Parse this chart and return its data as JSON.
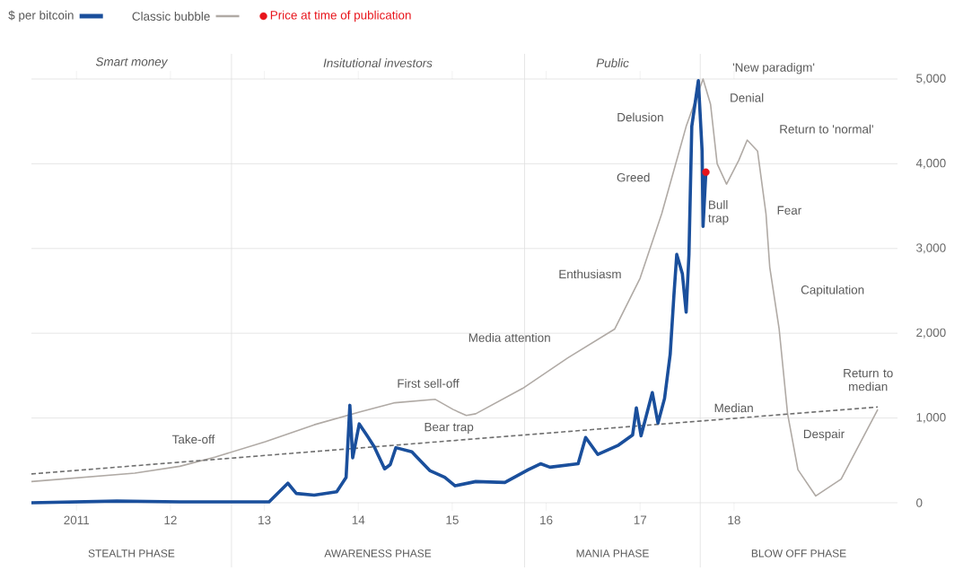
{
  "chart_data": {
    "type": "line",
    "xlim": [
      2010.52,
      2019.74
    ],
    "ylim": [
      0,
      5000
    ],
    "grid": "y",
    "legend": "top left",
    "xticks": [
      {
        "value": 2011,
        "label": "2011"
      },
      {
        "value": 2012,
        "label": "12"
      },
      {
        "value": 2013,
        "label": "13"
      },
      {
        "value": 2014,
        "label": "14"
      },
      {
        "value": 2015,
        "label": "15"
      },
      {
        "value": 2016,
        "label": "16"
      },
      {
        "value": 2017,
        "label": "17"
      },
      {
        "value": 2018,
        "label": "18"
      }
    ],
    "yticks": [
      0,
      {
        "value": 1000,
        "label": "1,000"
      },
      {
        "value": 2000,
        "label": "2,000"
      },
      {
        "value": 3000,
        "label": "3,000"
      },
      {
        "value": 4000,
        "label": "4,000"
      },
      {
        "value": 5000,
        "label": "5,000"
      }
    ],
    "ref_lines": [
      {
        "axis": "x",
        "value": 2012.65,
        "label": null
      },
      {
        "axis": "x",
        "value": 2015.77,
        "label": null
      },
      {
        "axis": "x",
        "value": 2017.64,
        "label": null
      }
    ],
    "annotations": [
      "Smart money",
      "Insitutional investors",
      "Public",
      "STEALTH PHASE",
      "AWARENESS PHASE",
      "MANIA PHASE",
      "BLOW OFF PHASE",
      "Take-off",
      "First sell-off",
      "Bear trap",
      "Media attention",
      "Enthusiasm",
      "Greed",
      "Delusion",
      "'New paradigm'",
      "Denial",
      "Return to 'normal'",
      "Bull trap",
      "Fear",
      "Capitulation",
      "Median",
      "Despair",
      "Return to median"
    ],
    "series": [
      {
        "name": "Classic bubble",
        "color": "#b0aaa5",
        "x": [
          2010.52,
          2011.62,
          2012.1,
          2012.48,
          2013.01,
          2013.53,
          2014.01,
          2014.39,
          2014.82,
          2015.01,
          2015.15,
          2015.25,
          2015.75,
          2016.23,
          2016.73,
          2017.0,
          2017.23,
          2017.49,
          2017.67,
          2017.75,
          2017.82,
          2017.92,
          2018.05,
          2018.14,
          2018.25,
          2018.34,
          2018.38,
          2018.48,
          2018.57,
          2018.68,
          2018.87,
          2019.14,
          2019.53
        ],
        "values": [
          250,
          350,
          430,
          540,
          720,
          920,
          1070,
          1180,
          1220,
          1100,
          1030,
          1050,
          1350,
          1710,
          2050,
          2650,
          3410,
          4440,
          5000,
          4700,
          4000,
          3760,
          4040,
          4280,
          4150,
          3410,
          2780,
          2050,
          1050,
          390,
          80,
          280,
          1100
        ]
      },
      {
        "color": "#6e6e6e",
        "line_style": "dashed",
        "x": [
          2010.52,
          2019.53
        ],
        "values": [
          340,
          1130
        ]
      },
      {
        "name": "$ per bitcoin",
        "color": "#1a4f9c",
        "x": [
          2010.52,
          2011.43,
          2012.1,
          2013.05,
          2013.25,
          2013.34,
          2013.53,
          2013.77,
          2013.87,
          2013.91,
          2013.94,
          2014.01,
          2014.1,
          2014.17,
          2014.28,
          2014.34,
          2014.4,
          2014.57,
          2014.76,
          2014.92,
          2015.03,
          2015.25,
          2015.56,
          2015.81,
          2015.94,
          2016.04,
          2016.34,
          2016.42,
          2016.55,
          2016.77,
          2016.92,
          2016.96,
          2017.01,
          2017.13,
          2017.19,
          2017.26,
          2017.32,
          2017.36,
          2017.39,
          2017.45,
          2017.49,
          2017.52,
          2017.55,
          2017.62,
          2017.66,
          2017.67,
          2017.7
        ],
        "values": [
          0,
          20,
          10,
          10,
          230,
          110,
          90,
          130,
          300,
          1150,
          530,
          930,
          780,
          660,
          400,
          450,
          650,
          600,
          380,
          300,
          200,
          250,
          240,
          390,
          460,
          420,
          460,
          770,
          570,
          680,
          800,
          1120,
          790,
          1300,
          940,
          1230,
          1750,
          2450,
          2930,
          2700,
          2250,
          2930,
          4440,
          4980,
          4150,
          3260,
          3900
        ]
      },
      {
        "name": "Price at time of publication",
        "type": "scatter",
        "marker": "circle",
        "color": "#e8141b",
        "x": [
          2017.7
        ],
        "values": [
          3900
        ]
      }
    ]
  }
}
